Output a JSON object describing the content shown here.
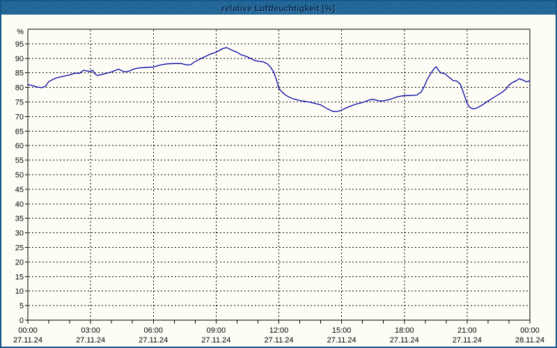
{
  "window": {
    "title": "relative Luftfeuchtigkeit [%]"
  },
  "colors": {
    "titlebar": "#1e6598",
    "window_border": "#17588c",
    "background": "#fdfdf6",
    "grid": "#000000",
    "axis": "#000000",
    "line": "#0000a0",
    "label_text": "#000000"
  },
  "chart_data": {
    "type": "line",
    "title": "relative Luftfeuchtigkeit [%]",
    "ylabel": "%",
    "unit_label": "%",
    "ylim": [
      0,
      100
    ],
    "y_tick_step": 5,
    "y_tick_label_min": 0,
    "y_tick_label_max": 95,
    "grid": true,
    "legend_position": "none",
    "x_hours_span": 24,
    "x_minor_tick_hours": 1,
    "x_major_ticks": [
      {
        "hours": 0,
        "time": "00:00",
        "date": "27.11.24"
      },
      {
        "hours": 3,
        "time": "03:00",
        "date": "27.11.24"
      },
      {
        "hours": 6,
        "time": "06:00",
        "date": "27.11.24"
      },
      {
        "hours": 9,
        "time": "09:00",
        "date": "27.11.24"
      },
      {
        "hours": 12,
        "time": "12:00",
        "date": "27.11.24"
      },
      {
        "hours": 15,
        "time": "15:00",
        "date": "27.11.24"
      },
      {
        "hours": 18,
        "time": "18:00",
        "date": "27.11.24"
      },
      {
        "hours": 21,
        "time": "21:00",
        "date": "27.11.24"
      },
      {
        "hours": 24,
        "time": "00:00",
        "date": "28.11.24"
      }
    ],
    "series": [
      {
        "name": "relative Luftfeuchtigkeit",
        "color": "#0000a0",
        "points": [
          [
            0.0,
            81.0
          ],
          [
            0.2,
            80.7
          ],
          [
            0.4,
            80.2
          ],
          [
            0.67,
            79.9
          ],
          [
            0.85,
            80.4
          ],
          [
            1.0,
            82.0
          ],
          [
            1.33,
            83.2
          ],
          [
            1.67,
            83.8
          ],
          [
            2.0,
            84.3
          ],
          [
            2.25,
            84.9
          ],
          [
            2.45,
            84.8
          ],
          [
            2.67,
            85.9
          ],
          [
            2.85,
            85.6
          ],
          [
            3.0,
            85.5
          ],
          [
            3.1,
            85.9
          ],
          [
            3.2,
            84.7
          ],
          [
            3.33,
            84.1
          ],
          [
            3.67,
            84.7
          ],
          [
            4.0,
            85.3
          ],
          [
            4.33,
            86.3
          ],
          [
            4.6,
            85.4
          ],
          [
            4.8,
            85.5
          ],
          [
            5.1,
            86.4
          ],
          [
            5.33,
            86.7
          ],
          [
            5.67,
            86.9
          ],
          [
            6.0,
            87.0
          ],
          [
            6.33,
            87.7
          ],
          [
            6.67,
            88.1
          ],
          [
            7.0,
            88.2
          ],
          [
            7.33,
            88.2
          ],
          [
            7.6,
            87.7
          ],
          [
            7.8,
            87.9
          ],
          [
            8.0,
            88.9
          ],
          [
            8.33,
            90.1
          ],
          [
            8.67,
            91.3
          ],
          [
            9.0,
            92.1
          ],
          [
            9.3,
            93.3
          ],
          [
            9.5,
            93.7
          ],
          [
            9.7,
            93.0
          ],
          [
            10.0,
            92.1
          ],
          [
            10.2,
            91.2
          ],
          [
            10.4,
            90.8
          ],
          [
            10.67,
            89.9
          ],
          [
            10.83,
            89.3
          ],
          [
            11.0,
            89.0
          ],
          [
            11.25,
            88.8
          ],
          [
            11.45,
            88.1
          ],
          [
            11.6,
            87.0
          ],
          [
            11.75,
            85.3
          ],
          [
            11.87,
            83.0
          ],
          [
            12.0,
            79.7
          ],
          [
            12.17,
            78.3
          ],
          [
            12.33,
            77.3
          ],
          [
            12.67,
            76.1
          ],
          [
            13.0,
            75.5
          ],
          [
            13.5,
            74.9
          ],
          [
            14.0,
            74.0
          ],
          [
            14.33,
            72.6
          ],
          [
            14.6,
            71.7
          ],
          [
            14.85,
            71.8
          ],
          [
            15.0,
            72.2
          ],
          [
            15.33,
            73.3
          ],
          [
            15.67,
            74.2
          ],
          [
            16.0,
            74.8
          ],
          [
            16.33,
            75.7
          ],
          [
            16.5,
            75.9
          ],
          [
            16.67,
            75.6
          ],
          [
            16.85,
            75.3
          ],
          [
            17.0,
            75.4
          ],
          [
            17.33,
            75.9
          ],
          [
            17.67,
            76.8
          ],
          [
            18.0,
            77.2
          ],
          [
            18.3,
            77.2
          ],
          [
            18.6,
            77.4
          ],
          [
            18.8,
            78.4
          ],
          [
            18.95,
            80.3
          ],
          [
            19.1,
            82.8
          ],
          [
            19.3,
            85.2
          ],
          [
            19.45,
            86.7
          ],
          [
            19.53,
            87.1
          ],
          [
            19.65,
            85.7
          ],
          [
            19.77,
            84.9
          ],
          [
            19.92,
            84.8
          ],
          [
            20.1,
            83.7
          ],
          [
            20.33,
            82.4
          ],
          [
            20.5,
            82.2
          ],
          [
            20.67,
            81.2
          ],
          [
            20.78,
            79.1
          ],
          [
            20.9,
            76.6
          ],
          [
            21.0,
            74.5
          ],
          [
            21.13,
            73.1
          ],
          [
            21.3,
            72.6
          ],
          [
            21.45,
            72.9
          ],
          [
            21.67,
            73.7
          ],
          [
            22.0,
            75.3
          ],
          [
            22.33,
            76.8
          ],
          [
            22.67,
            78.3
          ],
          [
            22.85,
            79.4
          ],
          [
            23.0,
            80.8
          ],
          [
            23.17,
            81.7
          ],
          [
            23.35,
            82.3
          ],
          [
            23.5,
            83.0
          ],
          [
            23.67,
            82.5
          ],
          [
            23.85,
            81.9
          ],
          [
            24.0,
            82.3
          ]
        ]
      }
    ]
  }
}
